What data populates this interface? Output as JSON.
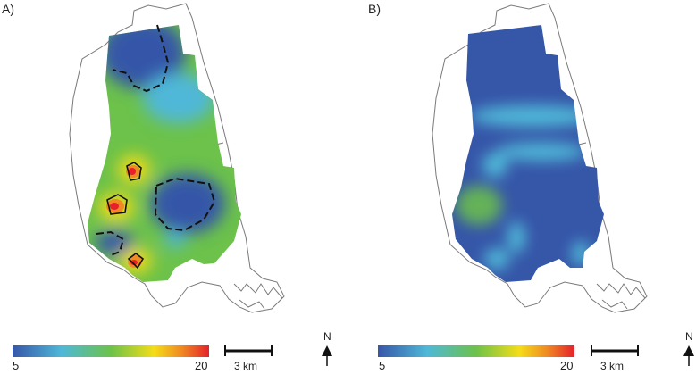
{
  "panels": [
    {
      "letter": "A)",
      "colorbar": {
        "min": "5",
        "max": "20"
      },
      "scalebar_label": "3 km",
      "north_label": "N"
    },
    {
      "letter": "B)",
      "colorbar": {
        "min": "5",
        "max": "20"
      },
      "scalebar_label": "3 km",
      "north_label": "N"
    }
  ],
  "colormap": [
    "#3656a8",
    "#4fb8d8",
    "#6cc24a",
    "#f4dd18",
    "#f08a22",
    "#e5212b"
  ],
  "colors": {
    "outline": "#7a7a7a",
    "contour": "#111111",
    "background": "#ffffff"
  },
  "icons": [
    "north-arrow-icon"
  ]
}
